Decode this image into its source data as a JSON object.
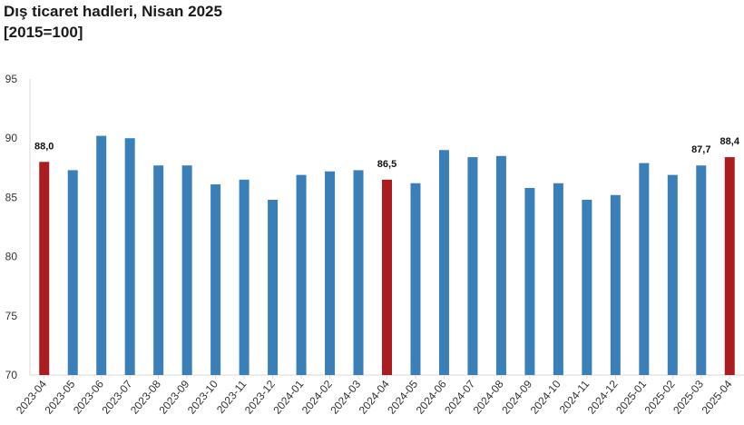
{
  "chart_data": {
    "type": "bar",
    "title": "Dış ticaret hadleri, Nisan 2025",
    "subtitle": "[2015=100]",
    "xlabel": "",
    "ylabel": "",
    "ylim": [
      70,
      95
    ],
    "yticks": [
      70,
      75,
      80,
      85,
      90,
      95
    ],
    "grid": false,
    "legend": "none",
    "categories": [
      "2023-04",
      "2023-05",
      "2023-06",
      "2023-07",
      "2023-08",
      "2023-09",
      "2023-10",
      "2023-11",
      "2023-12",
      "2024-01",
      "2024-02",
      "2024-03",
      "2024-04",
      "2024-05",
      "2024-06",
      "2024-07",
      "2024-08",
      "2024-09",
      "2024-10",
      "2024-11",
      "2024-12",
      "2025-01",
      "2025-02",
      "2025-03",
      "2025-04"
    ],
    "values": [
      88.0,
      87.3,
      90.2,
      90.0,
      87.7,
      87.7,
      86.1,
      86.5,
      84.8,
      86.9,
      87.2,
      87.3,
      86.5,
      86.2,
      89.0,
      88.4,
      88.5,
      85.8,
      86.2,
      84.8,
      85.2,
      87.9,
      86.9,
      87.7,
      88.4
    ],
    "highlighted": [
      "2023-04",
      "2024-04",
      "2025-04"
    ],
    "data_labels": [
      {
        "category": "2023-04",
        "text": "88,0"
      },
      {
        "category": "2024-04",
        "text": "86,5"
      },
      {
        "category": "2025-03",
        "text": "87,7"
      },
      {
        "category": "2025-04",
        "text": "88,4"
      }
    ],
    "colors": {
      "default": "#3a7fb8",
      "highlight": "#ab1c20",
      "axis": "#d9d9d9"
    }
  }
}
